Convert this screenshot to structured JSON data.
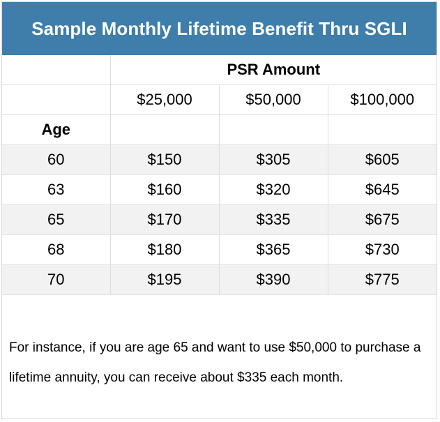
{
  "title": "Sample Monthly Lifetime Benefit Thru SGLI",
  "table": {
    "group_header": "PSR Amount",
    "columns": [
      "$25,000",
      "$50,000",
      "$100,000"
    ],
    "row_header": "Age",
    "rows": [
      {
        "age": "60",
        "values": [
          "$150",
          "$305",
          "$605"
        ]
      },
      {
        "age": "63",
        "values": [
          "$160",
          "$320",
          "$645"
        ]
      },
      {
        "age": "65",
        "values": [
          "$170",
          "$335",
          "$675"
        ]
      },
      {
        "age": "68",
        "values": [
          "$180",
          "$365",
          "$730"
        ]
      },
      {
        "age": "70",
        "values": [
          "$195",
          "$390",
          "$775"
        ]
      }
    ]
  },
  "note": "For instance, if you are age 65 and want to use $50,000 to purchase a lifetime annuity, you can receive about $335 each month.",
  "colors": {
    "title_background": "#3f7eaa",
    "title_text": "#ffffff",
    "shaded_row": "#f2f2f2"
  }
}
